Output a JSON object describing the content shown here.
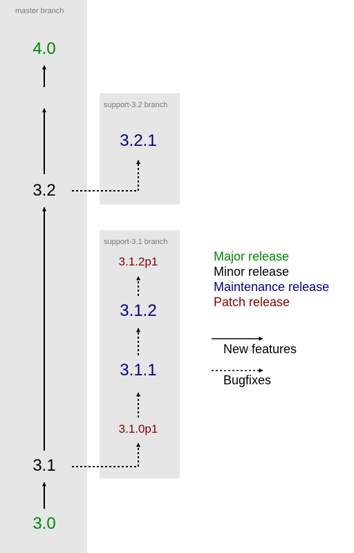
{
  "colors": {
    "major": "#008800",
    "minor": "#000000",
    "maintenance": "#000080",
    "patch": "#800000",
    "branch_bg": "#e6e6e6",
    "branch_label": "#777777"
  },
  "branches": {
    "master": {
      "label": "master branch"
    },
    "support_32": {
      "label": "support-3.2 branch"
    },
    "support_31": {
      "label": "support-3.1 branch"
    }
  },
  "versions": {
    "v40": {
      "text": "4.0",
      "kind": "major"
    },
    "v32": {
      "text": "3.2",
      "kind": "minor"
    },
    "v321": {
      "text": "3.2.1",
      "kind": "maintenance"
    },
    "v312p1": {
      "text": "3.1.2p1",
      "kind": "patch"
    },
    "v312": {
      "text": "3.1.2",
      "kind": "maintenance"
    },
    "v311": {
      "text": "3.1.1",
      "kind": "maintenance"
    },
    "v310p1": {
      "text": "3.1.0p1",
      "kind": "patch"
    },
    "v31": {
      "text": "3.1",
      "kind": "minor"
    },
    "v30": {
      "text": "3.0",
      "kind": "major"
    }
  },
  "legend": {
    "major": "Major release",
    "minor": "Minor release",
    "maintenance": "Maintenance release",
    "patch": "Patch release",
    "features": "New features",
    "bugfixes": "Bugfixes"
  }
}
